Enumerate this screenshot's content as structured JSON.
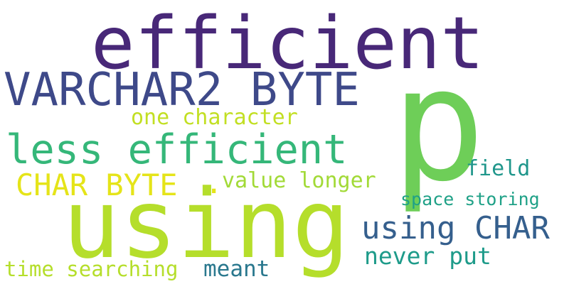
{
  "words": [
    {
      "key": "efficient",
      "text": "efficient",
      "color": "#482878"
    },
    {
      "key": "p",
      "text": "p",
      "color": "#6ece58"
    },
    {
      "key": "varchar",
      "text": "VARCHAR2 BYTE",
      "color": "#3e4989"
    },
    {
      "key": "less",
      "text": "less efficient",
      "color": "#35b779"
    },
    {
      "key": "using_big",
      "text": "using",
      "color": "#b5de2b"
    },
    {
      "key": "char_byte",
      "text": "CHAR BYTE",
      "color": "#e5e419"
    },
    {
      "key": "one_char",
      "text": "one character",
      "color": "#c2df23"
    },
    {
      "key": "value_longer",
      "text": "value longer",
      "color": "#a2da37"
    },
    {
      "key": "field",
      "text": "field",
      "color": "#1f968b"
    },
    {
      "key": "space_storing",
      "text": "space storing",
      "color": "#1fa187"
    },
    {
      "key": "using_char",
      "text": "using CHAR",
      "color": "#355f8d"
    },
    {
      "key": "never_put",
      "text": "never put",
      "color": "#1e9b8a"
    },
    {
      "key": "meant",
      "text": "meant",
      "color": "#2a788e"
    },
    {
      "key": "time_search",
      "text": "time searching",
      "color": "#b5de2b"
    },
    {
      "key": "dot",
      "text": ".",
      "color": "#e5e419"
    }
  ]
}
